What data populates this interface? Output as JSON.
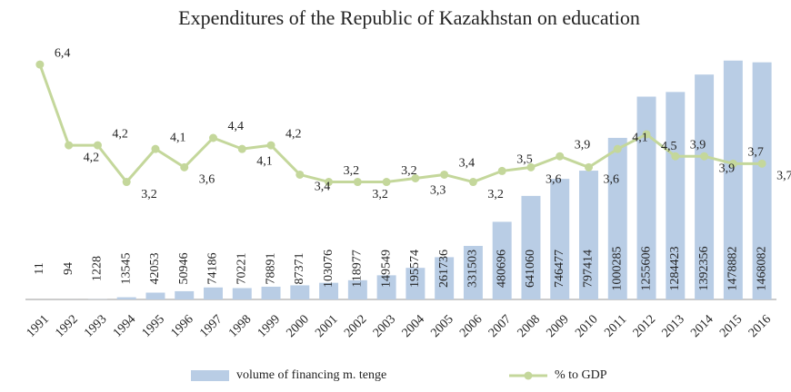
{
  "chart_data": {
    "type": "combo",
    "title": "Expenditures of the Republic of Kazakhstan on education",
    "categories": [
      "1991",
      "1992",
      "1993",
      "1994",
      "1995",
      "1996",
      "1997",
      "1998",
      "1999",
      "2000",
      "2001",
      "2002",
      "2003",
      "2004",
      "2005",
      "2006",
      "2007",
      "2008",
      "2009",
      "2010",
      "2011",
      "2012",
      "2013",
      "2014",
      "2015",
      "2016"
    ],
    "series": [
      {
        "name": "volume of financing m. tenge",
        "type": "bar",
        "color": "#b9cde5",
        "values": [
          11,
          94,
          1228,
          13545,
          42053,
          50946,
          74186,
          70221,
          78891,
          87371,
          103076,
          118977,
          149549,
          195574,
          261736,
          331503,
          480696,
          641060,
          746477,
          797414,
          1000285,
          1255606,
          1284423,
          1392356,
          1478882,
          1468082
        ]
      },
      {
        "name": "% to GDP",
        "type": "line",
        "axis": "y2",
        "color": "#c4d79b",
        "values": [
          6.4,
          4.2,
          4.2,
          3.2,
          4.1,
          3.6,
          4.4,
          4.1,
          4.2,
          3.4,
          3.2,
          3.2,
          3.2,
          3.3,
          3.4,
          3.2,
          3.5,
          3.6,
          3.9,
          3.6,
          4.1,
          4.5,
          3.9,
          3.9,
          3.7,
          3.7
        ],
        "value_labels": [
          "6,4",
          "4,2",
          "4,2",
          "3,2",
          "4,1",
          "3,6",
          "4,4",
          "4,1",
          "4,2",
          "3,4",
          "3,2",
          "3,2",
          "3,2",
          "3,3",
          "3,4",
          "3,2",
          "3,5",
          "3,6",
          "3,9",
          "3,6",
          "4,1",
          "4,5",
          "3,9",
          "3,9",
          "3,7",
          "3,7"
        ]
      }
    ],
    "ylim": [
      0,
      1500000
    ],
    "y2lim": [
      0,
      6.6
    ],
    "grid": false,
    "legend": "bottom"
  }
}
